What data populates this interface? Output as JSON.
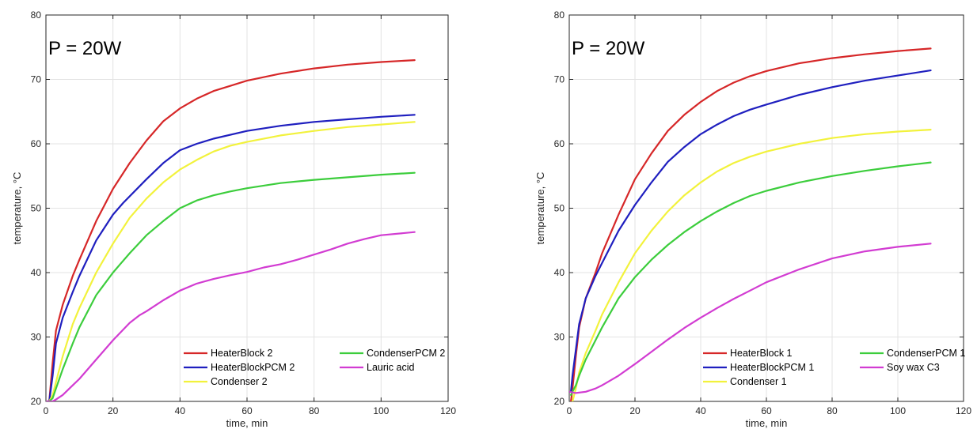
{
  "chart_data": [
    {
      "type": "line",
      "annotation": "P = 20W",
      "xlabel": "time, min",
      "ylabel": "temperature, °C",
      "xlim": [
        0,
        120
      ],
      "ylim": [
        20,
        80
      ],
      "xticks": [
        "0",
        "20",
        "40",
        "60",
        "80",
        "100",
        "120"
      ],
      "yticks": [
        "20",
        "30",
        "40",
        "50",
        "60",
        "70",
        "80"
      ],
      "grid": true,
      "legend_position": "bottom-right",
      "series": [
        {
          "name": "HeaterBlock 2",
          "color": "#d62728",
          "x": [
            0,
            1,
            2,
            3,
            5,
            8,
            10,
            15,
            20,
            25,
            30,
            35,
            40,
            45,
            50,
            55,
            60,
            70,
            80,
            90,
            100,
            110
          ],
          "y": [
            20,
            20,
            26,
            31,
            35,
            39.5,
            42,
            48,
            53,
            57,
            60.5,
            63.5,
            65.5,
            67,
            68.2,
            69,
            69.8,
            70.9,
            71.7,
            72.3,
            72.7,
            73
          ]
        },
        {
          "name": "HeaterBlockPCM 2",
          "color": "#1f1fbf",
          "x": [
            0,
            1,
            2,
            3,
            5,
            8,
            10,
            15,
            20,
            23,
            30,
            35,
            40,
            45,
            50,
            60,
            70,
            80,
            90,
            100,
            110
          ],
          "y": [
            20,
            20,
            24,
            29,
            33,
            37,
            39.5,
            45,
            49,
            50.8,
            54.5,
            57,
            59,
            60,
            60.8,
            62,
            62.8,
            63.4,
            63.8,
            64.2,
            64.5
          ]
        },
        {
          "name": "Condenser 2",
          "color": "#f2f23c",
          "x": [
            0,
            1,
            2,
            3,
            5,
            8,
            10,
            15,
            20,
            25,
            30,
            35,
            40,
            45,
            50,
            55,
            60,
            70,
            80,
            90,
            100,
            110
          ],
          "y": [
            20,
            20,
            21,
            23,
            27,
            32,
            34.5,
            40,
            44.5,
            48.5,
            51.5,
            54,
            56,
            57.5,
            58.8,
            59.7,
            60.3,
            61.3,
            62,
            62.6,
            63,
            63.4
          ]
        },
        {
          "name": "CondenserPCM 2",
          "color": "#3ccd3c",
          "x": [
            0,
            1,
            2,
            3,
            5,
            8,
            10,
            15,
            20,
            22,
            25,
            30,
            35,
            40,
            45,
            50,
            55,
            60,
            70,
            80,
            90,
            100,
            110
          ],
          "y": [
            20,
            20,
            20.5,
            22,
            25,
            29,
            31.5,
            36.5,
            40,
            41.2,
            43,
            45.8,
            48,
            50,
            51.2,
            52,
            52.6,
            53.1,
            53.9,
            54.4,
            54.8,
            55.2,
            55.5
          ]
        },
        {
          "name": "Lauric acid",
          "color": "#d23cd2",
          "x": [
            0,
            2,
            3,
            5,
            8,
            10,
            15,
            20,
            25,
            28,
            30,
            35,
            40,
            45,
            50,
            55,
            60,
            65,
            70,
            75,
            80,
            85,
            90,
            95,
            100,
            110
          ],
          "y": [
            20,
            20,
            20.3,
            21,
            22.5,
            23.5,
            26.5,
            29.5,
            32.2,
            33.4,
            34,
            35.7,
            37.2,
            38.3,
            39,
            39.6,
            40.1,
            40.8,
            41.3,
            42,
            42.8,
            43.6,
            44.5,
            45.2,
            45.8,
            46.3
          ]
        }
      ]
    },
    {
      "type": "line",
      "annotation": "P = 20W",
      "xlabel": "time, min",
      "ylabel": "temperature, °C",
      "xlim": [
        0,
        120
      ],
      "ylim": [
        20,
        80
      ],
      "xticks": [
        "0",
        "20",
        "40",
        "60",
        "80",
        "100",
        "120"
      ],
      "yticks": [
        "20",
        "30",
        "40",
        "50",
        "60",
        "70",
        "80"
      ],
      "grid": true,
      "legend_position": "bottom-right",
      "series": [
        {
          "name": "HeaterBlock 1",
          "color": "#d62728",
          "x": [
            0.5,
            1,
            2,
            3,
            5,
            8,
            10,
            15,
            20,
            25,
            30,
            35,
            40,
            45,
            50,
            55,
            60,
            70,
            80,
            90,
            100,
            110
          ],
          "y": [
            20,
            22,
            27,
            31.5,
            36,
            40,
            43,
            49,
            54.5,
            58.5,
            62,
            64.5,
            66.5,
            68.2,
            69.5,
            70.5,
            71.3,
            72.5,
            73.3,
            73.9,
            74.4,
            74.8
          ]
        },
        {
          "name": "HeaterBlockPCM 1",
          "color": "#1f1fbf",
          "x": [
            0.5,
            1,
            2,
            3,
            5,
            8,
            10,
            15,
            20,
            25,
            30,
            35,
            40,
            45,
            50,
            55,
            60,
            70,
            80,
            90,
            100,
            110
          ],
          "y": [
            21.5,
            24,
            28,
            32,
            36,
            39.5,
            41.5,
            46.5,
            50.5,
            54,
            57.2,
            59.5,
            61.5,
            63,
            64.3,
            65.3,
            66.1,
            67.6,
            68.8,
            69.8,
            70.6,
            71.4
          ]
        },
        {
          "name": "Condenser 1",
          "color": "#f2f23c",
          "x": [
            1,
            2,
            3,
            5,
            8,
            10,
            15,
            20,
            25,
            30,
            35,
            40,
            45,
            50,
            55,
            60,
            70,
            80,
            90,
            100,
            110
          ],
          "y": [
            20,
            22,
            24.5,
            27.5,
            31,
            33.5,
            38.5,
            43,
            46.5,
            49.5,
            52,
            54,
            55.7,
            57,
            58,
            58.8,
            60,
            60.9,
            61.5,
            61.9,
            62.2
          ]
        },
        {
          "name": "CondenserPCM 1",
          "color": "#3ccd3c",
          "x": [
            0.5,
            1,
            2,
            3,
            5,
            8,
            10,
            15,
            20,
            25,
            30,
            35,
            40,
            45,
            50,
            55,
            60,
            70,
            80,
            90,
            100,
            110
          ],
          "y": [
            21,
            21.5,
            22.5,
            24,
            26.5,
            29.5,
            31.5,
            36,
            39.3,
            42,
            44.3,
            46.3,
            48,
            49.5,
            50.8,
            51.9,
            52.7,
            54,
            55,
            55.8,
            56.5,
            57.1
          ]
        },
        {
          "name": "Soy wax C3",
          "color": "#d23cd2",
          "x": [
            0,
            2,
            5,
            8,
            10,
            15,
            20,
            25,
            30,
            35,
            40,
            45,
            50,
            55,
            60,
            70,
            80,
            90,
            100,
            110
          ],
          "y": [
            21.5,
            21.3,
            21.5,
            22,
            22.5,
            24,
            25.8,
            27.7,
            29.6,
            31.4,
            33,
            34.5,
            35.9,
            37.2,
            38.5,
            40.5,
            42.2,
            43.3,
            44,
            44.5
          ]
        }
      ]
    }
  ]
}
